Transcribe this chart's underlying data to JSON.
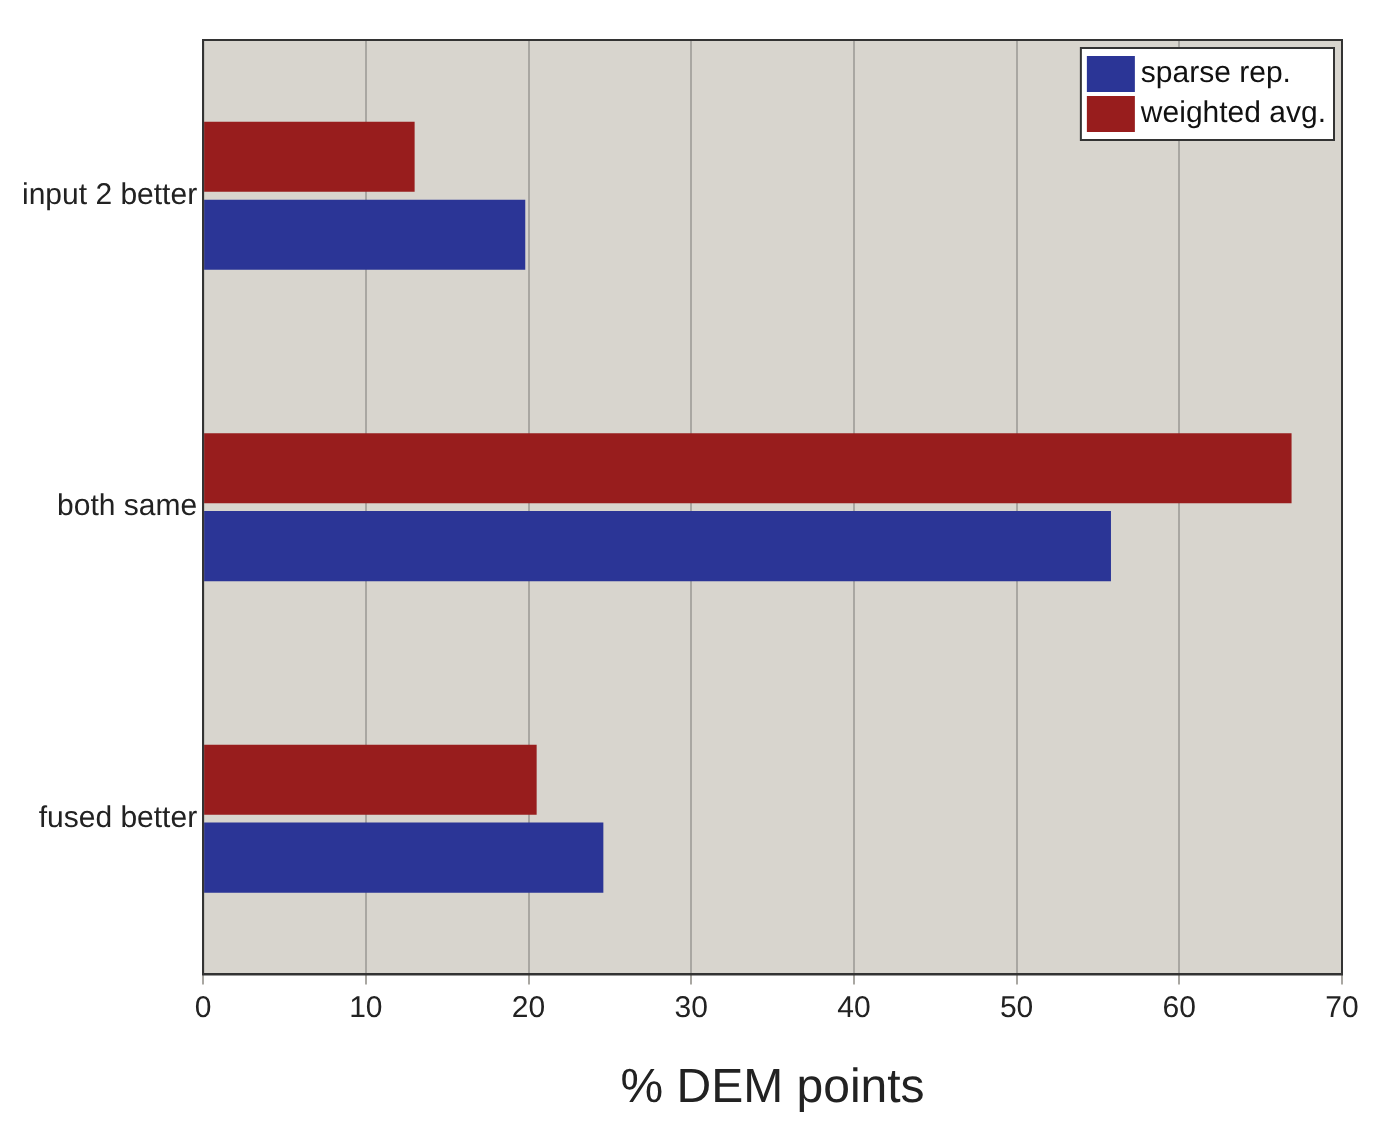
{
  "chart_data": {
    "type": "bar",
    "orientation": "horizontal",
    "xlabel": "% DEM points",
    "categories": [
      "input 2 better",
      "both same",
      "fused better"
    ],
    "series": [
      {
        "name": "sparse rep.",
        "color": "#2b3596",
        "values": [
          19.8,
          55.8,
          24.6
        ]
      },
      {
        "name": "weighted avg.",
        "color": "#981d1d",
        "values": [
          13,
          66.9,
          20.5
        ]
      }
    ],
    "xlim": [
      0,
      70
    ],
    "xticks": [
      0,
      10,
      20,
      30,
      40,
      50,
      60,
      70
    ],
    "grid": "x",
    "legend": "top right"
  }
}
